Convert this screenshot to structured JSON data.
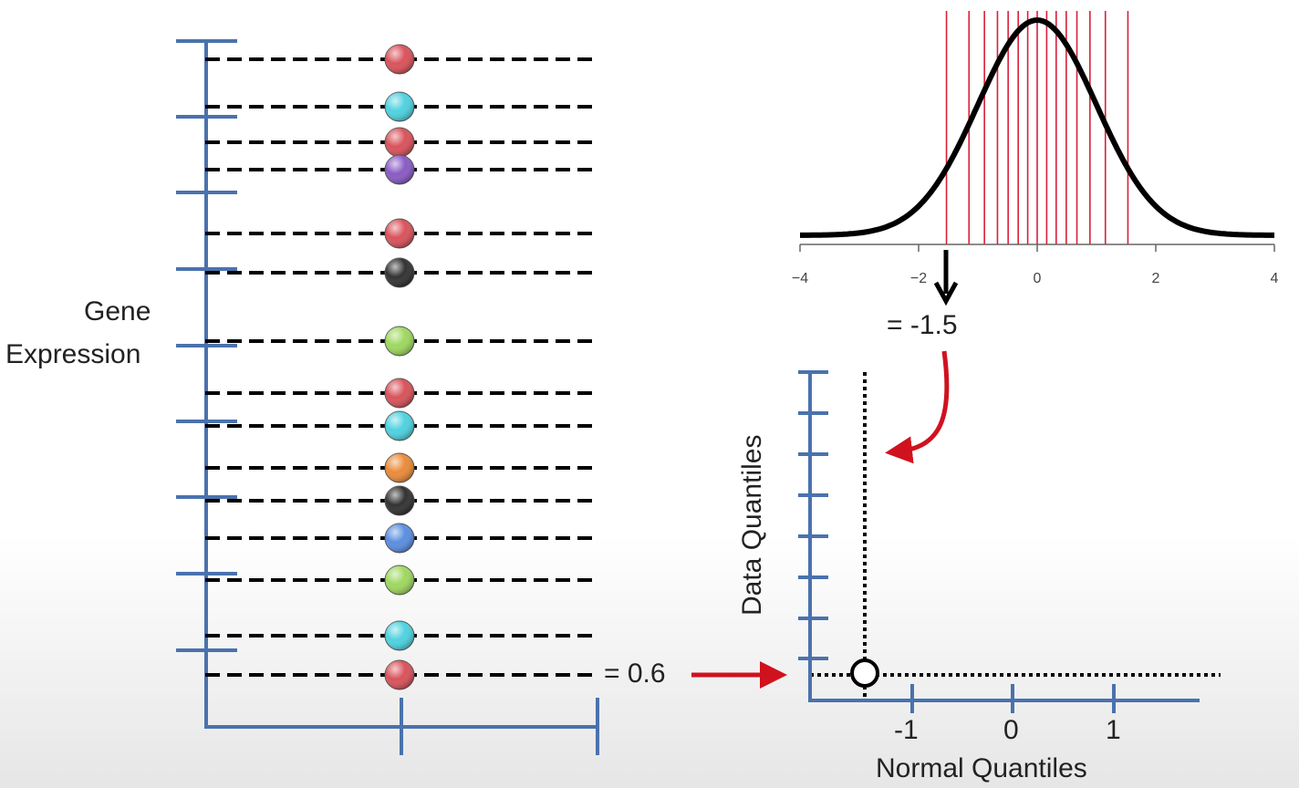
{
  "left_axis_label_line1": "Gene",
  "left_axis_label_line2": "Expression",
  "data_point_value_label": "= 0.6",
  "normal_quantile_value_label": "= -1.5",
  "qq_plot": {
    "ylabel": "Data Quantiles",
    "xlabel": "Normal Quantiles",
    "x_ticks": [
      "-1",
      "0",
      "1"
    ]
  },
  "normal_curve": {
    "x_ticks": [
      "−4",
      "−2",
      "0",
      "2",
      "4"
    ],
    "xlim": [
      -4,
      4
    ],
    "quantile_lines": [
      -1.53,
      -1.15,
      -0.89,
      -0.67,
      -0.49,
      -0.32,
      -0.16,
      0,
      0.16,
      0.32,
      0.49,
      0.67,
      0.89,
      1.15,
      1.53
    ]
  },
  "gene_points": [
    {
      "color": "#d9535b"
    },
    {
      "color": "#4fd2e0"
    },
    {
      "color": "#d9535b"
    },
    {
      "color": "#8a5bc4"
    },
    {
      "color": "#d9535b"
    },
    {
      "color": "#333333"
    },
    {
      "color": "#9ed860"
    },
    {
      "color": "#d9535b"
    },
    {
      "color": "#4fd2e0"
    },
    {
      "color": "#ea8b3a"
    },
    {
      "color": "#333333"
    },
    {
      "color": "#5b8ee0"
    },
    {
      "color": "#9ed860"
    },
    {
      "color": "#4fd2e0"
    },
    {
      "color": "#d9535b"
    }
  ],
  "colors": {
    "axis": "#4a72ad",
    "arrow": "#d0121e",
    "quantile_line": "#d8203a"
  }
}
